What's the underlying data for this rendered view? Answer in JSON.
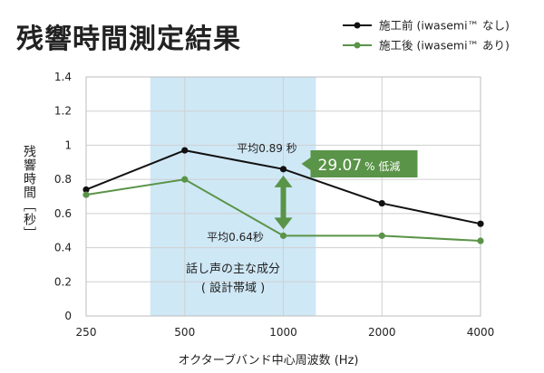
{
  "title": "残響時間測定結果",
  "chart_data": {
    "type": "line",
    "title": "残響時間測定結果",
    "xlabel": "オクターブバンド中心周波数 (Hz)",
    "ylabel": "残響時間［秒］",
    "categories": [
      "250",
      "500",
      "1000",
      "2000",
      "4000"
    ],
    "ylim": [
      0,
      1.4
    ],
    "yticks": [
      "0",
      "0.2",
      "0.4",
      "0.6",
      "0.8",
      "1",
      "1.2",
      "1.4"
    ],
    "grid": true,
    "legend_position": "top-right",
    "series": [
      {
        "name": "施工前 (iwasemi™ なし)",
        "color": "#111111",
        "values": [
          0.74,
          0.97,
          0.86,
          0.66,
          0.54
        ]
      },
      {
        "name": "施工後 (iwasemi™ あり)",
        "color": "#5a9448",
        "values": [
          0.71,
          0.8,
          0.47,
          0.47,
          0.44
        ]
      }
    ],
    "annotations": {
      "band_label_1": "話し声の主な成分",
      "band_label_2": "( 設計帯域 )",
      "before_avg": "平均0.89 秒",
      "after_avg": "平均0.64秒",
      "reduction_value": "29.07",
      "reduction_unit": "% 低減"
    },
    "colors": {
      "band": "#cfe8f6",
      "accent": "#5a9448"
    }
  }
}
